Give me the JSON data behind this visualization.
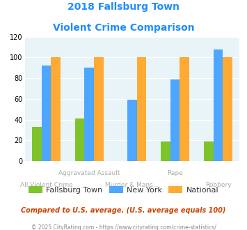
{
  "title_line1": "2018 Fallsburg Town",
  "title_line2": "Violent Crime Comparison",
  "title_color": "#1e8cff",
  "categories": [
    "All Violent Crime",
    "Aggravated Assault",
    "Murder & Mans...",
    "Rape",
    "Robbery"
  ],
  "series": {
    "Fallsburg Town": {
      "values": [
        33,
        41,
        0,
        19,
        19
      ],
      "color": "#7dc42a"
    },
    "New York": {
      "values": [
        92,
        90,
        59,
        79,
        108
      ],
      "color": "#4da6ff"
    },
    "National": {
      "values": [
        100,
        100,
        100,
        100,
        100
      ],
      "color": "#ffaa33"
    }
  },
  "ylim": [
    0,
    120
  ],
  "yticks": [
    0,
    20,
    40,
    60,
    80,
    100,
    120
  ],
  "x_top_labels": [
    {
      "idx": 1,
      "text": "Aggravated Assault"
    },
    {
      "idx": 3,
      "text": "Rape"
    }
  ],
  "x_bot_labels": [
    {
      "idx": 0,
      "text": "All Violent Crime"
    },
    {
      "idx": 2,
      "text": "Murder & Mans..."
    },
    {
      "idx": 4,
      "text": "Robbery"
    }
  ],
  "footnote1": "Compared to U.S. average. (U.S. average equals 100)",
  "footnote2": "© 2025 CityRating.com - https://www.cityrating.com/crime-statistics/",
  "footnote1_color": "#cc4400",
  "footnote2_color": "#888888",
  "bg_color": "#e8f4f8",
  "legend_labels": [
    "Fallsburg Town",
    "New York",
    "National"
  ],
  "legend_colors": [
    "#7dc42a",
    "#4da6ff",
    "#ffaa33"
  ]
}
